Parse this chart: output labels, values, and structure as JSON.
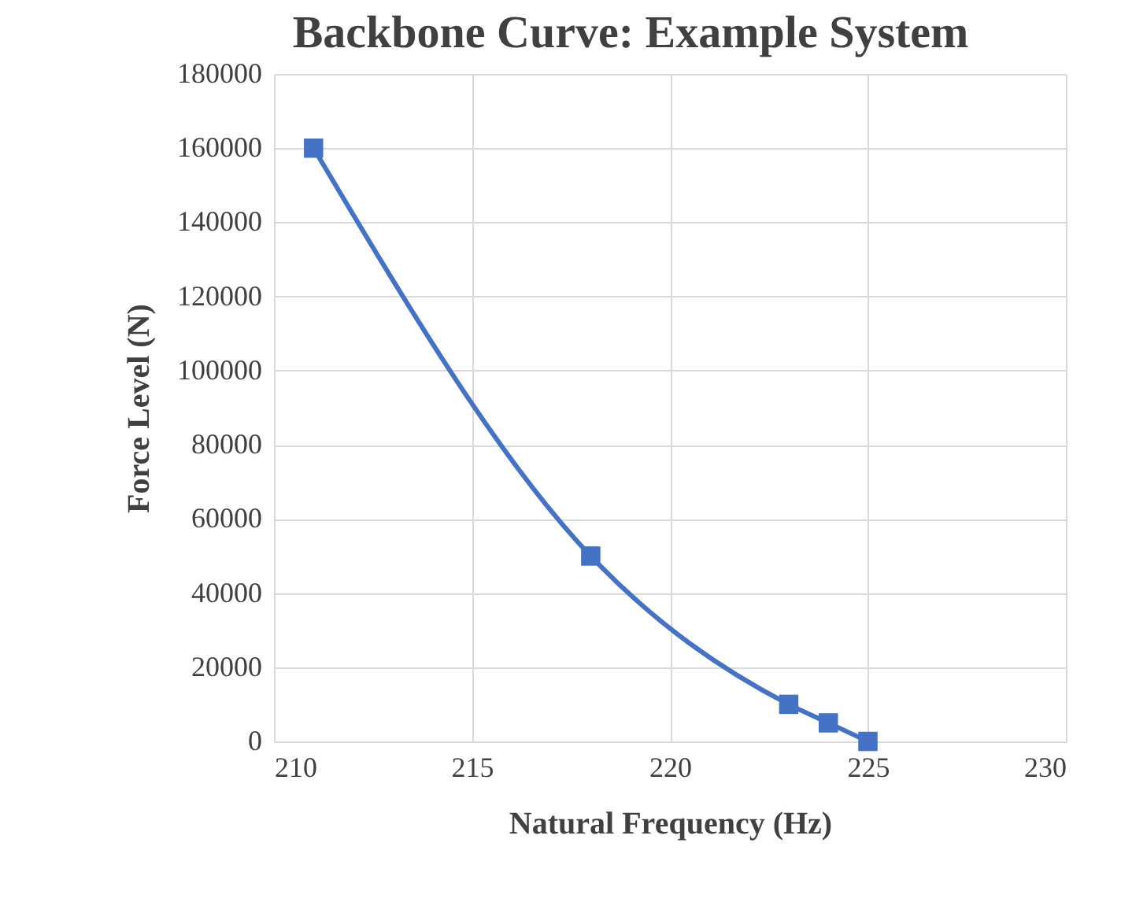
{
  "chart_data": {
    "type": "line",
    "title": "Backbone Curve: Example System",
    "xlabel": "Natural Frequency (Hz)",
    "ylabel": "Force Level (N)",
    "x": [
      211,
      218,
      223,
      224,
      225
    ],
    "series": [
      {
        "color": "#4472c4",
        "values": [
          160000,
          50000,
          10000,
          5000,
          0
        ]
      }
    ],
    "xlim": [
      210,
      230
    ],
    "xticks": [
      210,
      215,
      220,
      225,
      230
    ],
    "ylim": [
      0,
      180000
    ],
    "yticks": [
      0,
      20000,
      40000,
      60000,
      80000,
      100000,
      120000,
      140000,
      160000,
      180000
    ],
    "grid": true,
    "marker": "square",
    "line_style": "solid"
  }
}
